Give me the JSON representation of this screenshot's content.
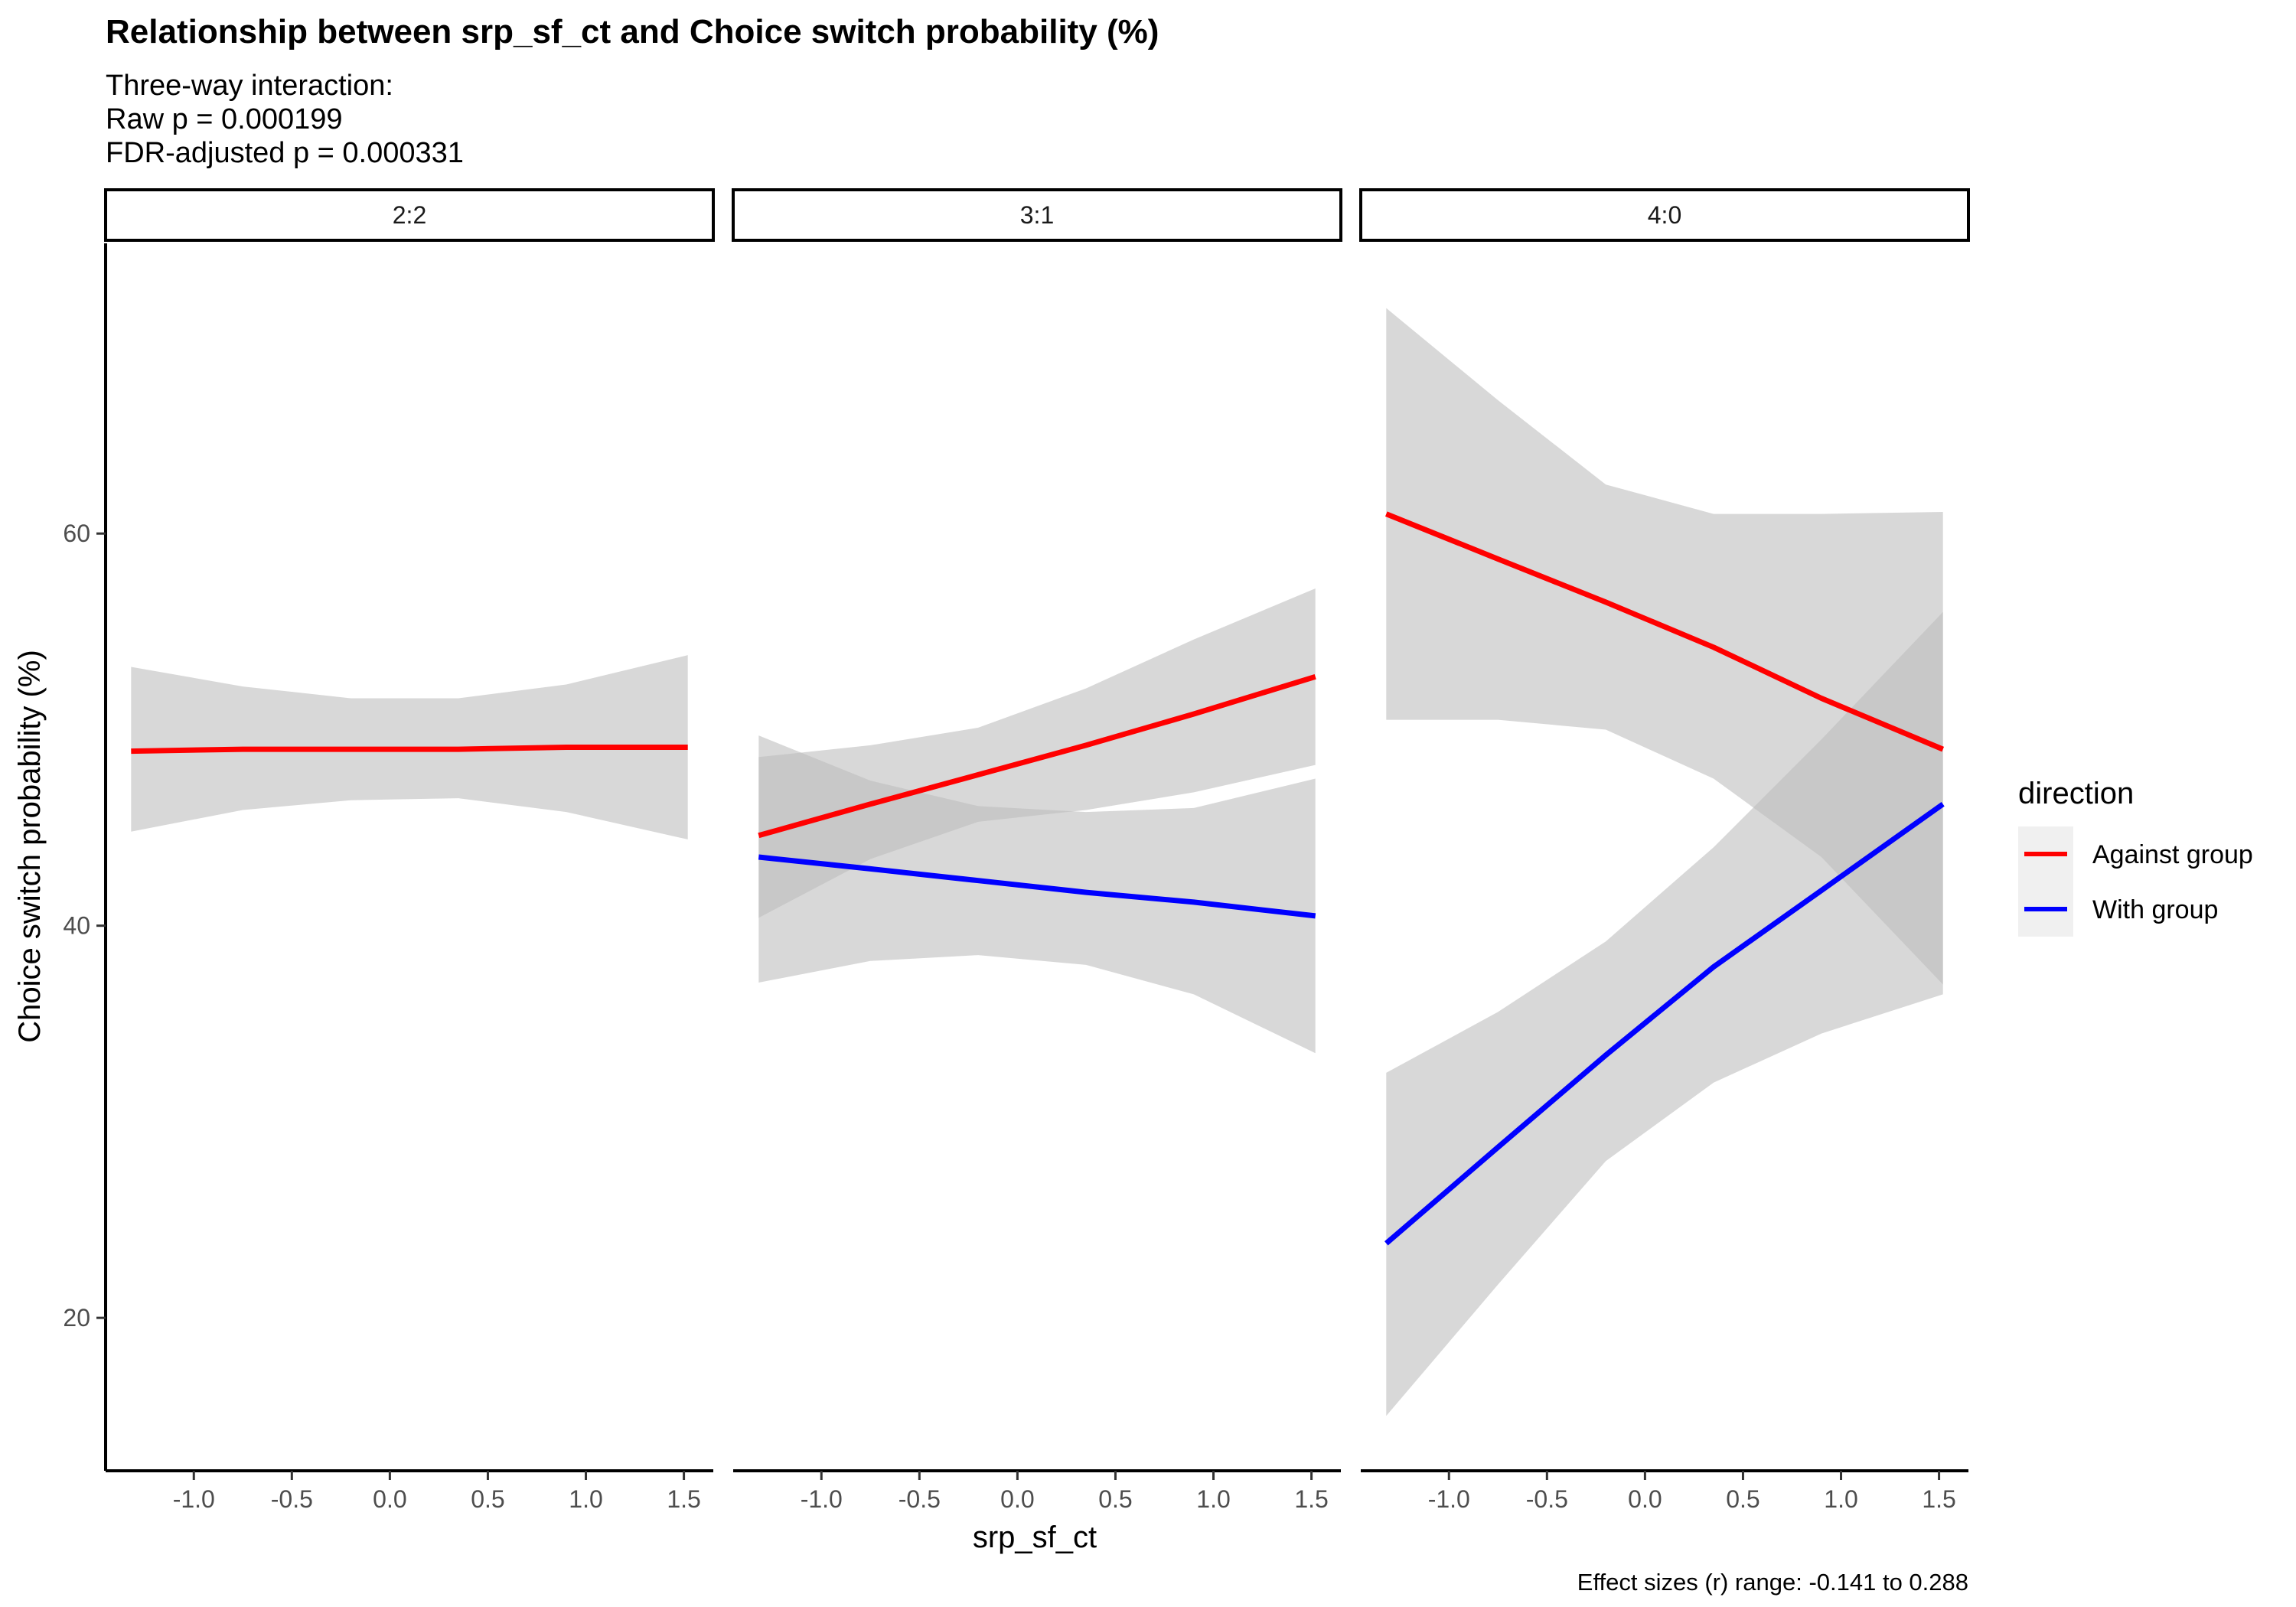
{
  "chart_data": {
    "type": "line",
    "title": "Relationship between srp_sf_ct and Choice switch probability (%)",
    "subtitle": [
      "Three-way interaction:",
      "Raw p = 0.000199",
      "FDR-adjusted p = 0.000331"
    ],
    "xlabel": "srp_sf_ct",
    "ylabel": "Choice switch probability (%)",
    "caption": "Effect sizes (r) range: -0.141 to 0.288",
    "xlim": [
      -1.45,
      1.65
    ],
    "ylim": [
      12.2,
      74.8
    ],
    "x_ticks": [
      -1.0,
      -0.5,
      0.0,
      0.5,
      1.0,
      1.5
    ],
    "x_tick_labels": [
      "-1.0",
      "-0.5",
      "0.0",
      "0.5",
      "1.0",
      "1.5"
    ],
    "y_ticks": [
      20,
      40,
      60
    ],
    "y_tick_labels": [
      "20",
      "40",
      "60"
    ],
    "grid": false,
    "legend": {
      "title": "direction",
      "position": "right",
      "entries": [
        {
          "label": "Against group",
          "color": "#ff0000"
        },
        {
          "label": "With group",
          "color": "#0000ff"
        }
      ]
    },
    "ribbon_color": "#bebebe",
    "panels": [
      {
        "label": "2:2",
        "series": [
          {
            "name": "Against group",
            "color": "#ff0000",
            "x": [
              -1.32,
              -0.75,
              -0.2,
              0.35,
              0.9,
              1.52
            ],
            "y": [
              48.9,
              49.0,
              49.0,
              49.0,
              49.1,
              49.1
            ],
            "lower": [
              44.8,
              45.9,
              46.4,
              46.5,
              45.8,
              44.4
            ],
            "upper": [
              53.2,
              52.2,
              51.6,
              51.6,
              52.3,
              53.8
            ]
          }
        ]
      },
      {
        "label": "3:1",
        "series": [
          {
            "name": "Against group",
            "color": "#ff0000",
            "x": [
              -1.32,
              -0.75,
              -0.2,
              0.35,
              0.9,
              1.52
            ],
            "y": [
              44.6,
              46.2,
              47.7,
              49.2,
              50.8,
              52.7
            ],
            "lower": [
              40.4,
              43.4,
              45.3,
              45.9,
              46.8,
              48.2
            ],
            "upper": [
              48.6,
              49.2,
              50.1,
              52.1,
              54.6,
              57.2
            ]
          },
          {
            "name": "With group",
            "color": "#0000ff",
            "x": [
              -1.32,
              -0.75,
              -0.2,
              0.35,
              0.9,
              1.52
            ],
            "y": [
              43.5,
              42.9,
              42.3,
              41.7,
              41.2,
              40.5
            ],
            "lower": [
              37.1,
              38.2,
              38.5,
              38.0,
              36.5,
              33.5
            ],
            "upper": [
              49.7,
              47.4,
              46.1,
              45.8,
              46.0,
              47.5
            ]
          }
        ]
      },
      {
        "label": "4:0",
        "series": [
          {
            "name": "Against group",
            "color": "#ff0000",
            "x": [
              -1.32,
              -0.75,
              -0.2,
              0.35,
              0.9,
              1.52
            ],
            "y": [
              61.0,
              58.7,
              56.5,
              54.2,
              51.6,
              49.0
            ],
            "lower": [
              50.5,
              50.5,
              50.0,
              47.5,
              43.5,
              37.0
            ],
            "upper": [
              71.5,
              66.8,
              62.5,
              61.0,
              61.0,
              61.1
            ]
          },
          {
            "name": "With group",
            "color": "#0000ff",
            "x": [
              -1.32,
              -0.75,
              -0.2,
              0.35,
              0.9,
              1.52
            ],
            "y": [
              23.8,
              28.7,
              33.4,
              37.9,
              41.8,
              46.2
            ],
            "lower": [
              15.0,
              21.7,
              28.0,
              32.0,
              34.5,
              36.5
            ],
            "upper": [
              32.5,
              35.6,
              39.2,
              44.0,
              49.5,
              56.0
            ]
          }
        ]
      }
    ]
  }
}
